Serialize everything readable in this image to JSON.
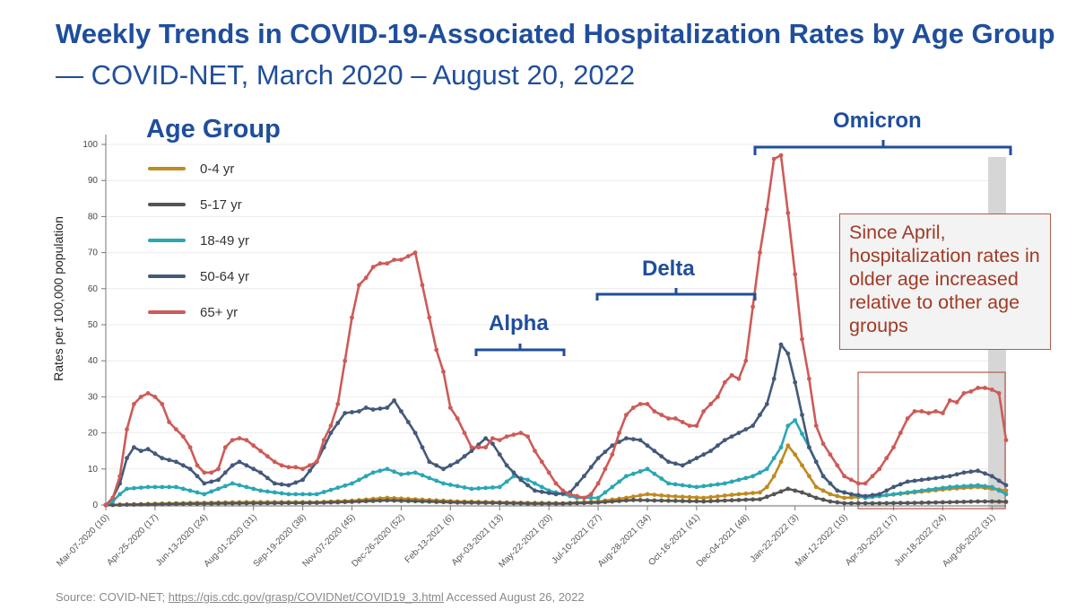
{
  "header": {
    "title": "Weekly Trends in COVID-19-Associated Hospitalization Rates by Age Group",
    "subtitle": "— COVID-NET, March 2020 – August 20, 2022"
  },
  "legend": {
    "title": "Age Group"
  },
  "annotations": {
    "alpha": "Alpha",
    "delta": "Delta",
    "omicron": "Omicron",
    "callout": "Since April, hospitalization rates in older age increased relative to other age groups"
  },
  "source": {
    "prefix": "Source: COVID-NET; ",
    "link": "https://gis.cdc.gov/grasp/COVIDNet/COVID19_3.html",
    "suffix": " Accessed August 26, 2022"
  },
  "colors": {
    "title": "#1f4e9c",
    "callout_text": "#a23a24",
    "highlight_box": "#b25b4c"
  },
  "chart_data": {
    "type": "line",
    "ylabel": "Rates per 100,000 population",
    "xlabel": "",
    "ylim": [
      0,
      100
    ],
    "yticks": [
      0,
      10,
      20,
      30,
      40,
      50,
      60,
      70,
      80,
      90,
      100
    ],
    "xlim": [
      0,
      128
    ],
    "grid": true,
    "legend_position": "top-left",
    "x_tick_labels": [
      {
        "week": 0,
        "label": "Mar-07-2020 (10)"
      },
      {
        "week": 7,
        "label": "Apr-25-2020 (17)"
      },
      {
        "week": 14,
        "label": "Jun-13-2020 (24)"
      },
      {
        "week": 21,
        "label": "Aug-01-2020 (31)"
      },
      {
        "week": 28,
        "label": "Sep-19-2020 (38)"
      },
      {
        "week": 35,
        "label": "Nov-07-2020 (45)"
      },
      {
        "week": 42,
        "label": "Dec-26-2020 (52)"
      },
      {
        "week": 49,
        "label": "Feb-13-2021 (6)"
      },
      {
        "week": 56,
        "label": "Apr-03-2021 (13)"
      },
      {
        "week": 63,
        "label": "May-22-2021 (20)"
      },
      {
        "week": 70,
        "label": "Jul-10-2021 (27)"
      },
      {
        "week": 77,
        "label": "Aug-28-2021 (34)"
      },
      {
        "week": 84,
        "label": "Oct-16-2021 (41)"
      },
      {
        "week": 91,
        "label": "Dec-04-2021 (48)"
      },
      {
        "week": 98,
        "label": "Jan-22-2022 (3)"
      },
      {
        "week": 105,
        "label": "Mar-12-2022 (10)"
      },
      {
        "week": 112,
        "label": "Apr-30-2022 (17)"
      },
      {
        "week": 119,
        "label": "Jun-18-2022 (24)"
      },
      {
        "week": 126,
        "label": "Aug-06-2022 (31)"
      }
    ],
    "series": [
      {
        "name": "0-4 yr",
        "color": "#c08a1e",
        "x": [
          0,
          10,
          20,
          30,
          35,
          40,
          45,
          50,
          55,
          60,
          65,
          70,
          74,
          77,
          80,
          85,
          90,
          93,
          94,
          95,
          96,
          97,
          98,
          99,
          100,
          101,
          103,
          105,
          110,
          115,
          120,
          124,
          126,
          128
        ],
        "y": [
          0,
          0.5,
          0.8,
          0.8,
          1.2,
          2,
          1.5,
          1,
          0.8,
          0.6,
          0.5,
          1,
          2,
          3,
          2.5,
          2,
          3,
          3.5,
          5,
          8,
          12,
          16.5,
          14,
          11,
          8,
          5,
          3,
          2,
          2.5,
          3.5,
          4.5,
          5,
          4.5,
          4
        ]
      },
      {
        "name": "5-17 yr",
        "color": "#555555",
        "x": [
          0,
          10,
          20,
          30,
          35,
          40,
          45,
          50,
          55,
          60,
          65,
          70,
          75,
          80,
          85,
          90,
          93,
          95,
          97,
          99,
          101,
          103,
          105,
          110,
          115,
          120,
          124,
          126,
          128
        ],
        "y": [
          0,
          0.3,
          0.5,
          0.6,
          0.9,
          1.3,
          1,
          0.7,
          0.6,
          0.4,
          0.4,
          0.7,
          1.4,
          1.2,
          1,
          1.4,
          1.6,
          3,
          4.5,
          3.5,
          2,
          1,
          0.5,
          0.5,
          0.6,
          0.8,
          1,
          1,
          0.9
        ]
      },
      {
        "name": "18-49 yr",
        "color": "#2aa7b5",
        "x": [
          0,
          1,
          2,
          3,
          6,
          10,
          14,
          18,
          22,
          26,
          30,
          35,
          38,
          40,
          42,
          44,
          48,
          52,
          56,
          58,
          60,
          63,
          67,
          70,
          74,
          77,
          80,
          84,
          88,
          92,
          94,
          96,
          97,
          98,
          100,
          102,
          104,
          108,
          112,
          116,
          120,
          124,
          126,
          128
        ],
        "y": [
          0,
          1,
          3,
          4.5,
          5,
          5,
          3,
          6,
          4,
          3,
          3,
          6,
          9,
          10,
          8.5,
          9,
          6,
          4.5,
          5,
          8,
          7,
          4,
          2,
          2,
          8,
          10,
          6,
          5,
          6,
          8,
          10,
          16,
          22,
          23.5,
          16,
          8,
          4,
          2,
          3,
          4,
          5,
          5.5,
          5,
          3
        ]
      },
      {
        "name": "50-64 yr",
        "color": "#44597a",
        "x": [
          0,
          1,
          2,
          3,
          4,
          5,
          6,
          8,
          10,
          12,
          14,
          16,
          18,
          19,
          20,
          22,
          24,
          26,
          28,
          30,
          32,
          34,
          36,
          37,
          38,
          40,
          41,
          42,
          44,
          45,
          46,
          48,
          50,
          52,
          54,
          55,
          57,
          59,
          61,
          64,
          66,
          68,
          70,
          72,
          74,
          76,
          78,
          80,
          82,
          84,
          86,
          88,
          90,
          92,
          94,
          95,
          96,
          97,
          98,
          99,
          100,
          102,
          104,
          106,
          108,
          110,
          112,
          114,
          116,
          118,
          120,
          122,
          124,
          126,
          128
        ],
        "y": [
          0,
          2,
          6,
          13,
          16,
          15,
          15.5,
          13,
          12,
          10,
          6,
          7,
          11,
          12,
          11,
          9,
          6,
          5.5,
          7,
          12,
          20,
          25.5,
          26,
          27,
          26.5,
          27,
          29,
          26,
          20,
          16,
          12,
          10,
          12,
          15,
          18.5,
          17,
          11,
          7,
          4,
          3,
          3.5,
          8,
          13,
          16.5,
          18.5,
          18,
          15,
          12,
          11,
          13,
          15,
          18,
          20,
          22,
          28,
          35,
          44.5,
          42,
          34,
          25,
          16,
          8,
          4,
          3,
          2.5,
          3,
          5,
          6.5,
          7,
          7.5,
          8,
          9,
          9.5,
          8,
          5.5
        ]
      },
      {
        "name": "65+ yr",
        "color": "#cd5b57",
        "x": [
          0,
          1,
          2,
          3,
          4,
          5,
          6,
          7,
          8,
          9,
          10,
          11,
          12,
          13,
          14,
          15,
          16,
          17,
          18,
          19,
          20,
          21,
          22,
          23,
          24,
          25,
          26,
          27,
          28,
          29,
          30,
          31,
          32,
          33,
          34,
          35,
          36,
          37,
          38,
          39,
          40,
          41,
          42,
          43,
          44,
          45,
          46,
          47,
          48,
          49,
          50,
          51,
          52,
          53,
          54,
          55,
          56,
          57,
          58,
          59,
          60,
          61,
          62,
          63,
          64,
          65,
          66,
          67,
          68,
          69,
          70,
          71,
          72,
          73,
          74,
          75,
          76,
          77,
          78,
          79,
          80,
          81,
          82,
          83,
          84,
          85,
          86,
          87,
          88,
          89,
          90,
          91,
          92,
          93,
          94,
          95,
          96,
          97,
          98,
          99,
          100,
          101,
          102,
          103,
          104,
          105,
          106,
          107,
          108,
          109,
          110,
          111,
          112,
          113,
          114,
          115,
          116,
          117,
          118,
          119,
          120,
          121,
          122,
          123,
          124,
          125,
          126,
          127,
          128
        ],
        "y": [
          0,
          2,
          8,
          21,
          28,
          30,
          31,
          30,
          28,
          23,
          21,
          19,
          16,
          11,
          9,
          9,
          10,
          16,
          18,
          18.5,
          18,
          16.5,
          15,
          13.5,
          12,
          11,
          10.5,
          10.5,
          10,
          11,
          12,
          18,
          22,
          28,
          40,
          52,
          61,
          63,
          66,
          67,
          67,
          68,
          68,
          69,
          70,
          61,
          52,
          43,
          37,
          27,
          24,
          20,
          16,
          16,
          16,
          18.5,
          18,
          19,
          19.5,
          20,
          19,
          15,
          12,
          9,
          6,
          4,
          3,
          2.5,
          2,
          3,
          6,
          10,
          14,
          20,
          25,
          27,
          28,
          28,
          26,
          25,
          24,
          24,
          23,
          22,
          22,
          26,
          28,
          30,
          34,
          36,
          35,
          40,
          55,
          70,
          82,
          96,
          97,
          81,
          64,
          46,
          35,
          22,
          17,
          14,
          11,
          8,
          7,
          6,
          6,
          8,
          10,
          13,
          16,
          20,
          24,
          26,
          26,
          25.5,
          26,
          25.5,
          29,
          28.5,
          31,
          31.5,
          32.5,
          32.5,
          32,
          31,
          18
        ]
      }
    ]
  }
}
